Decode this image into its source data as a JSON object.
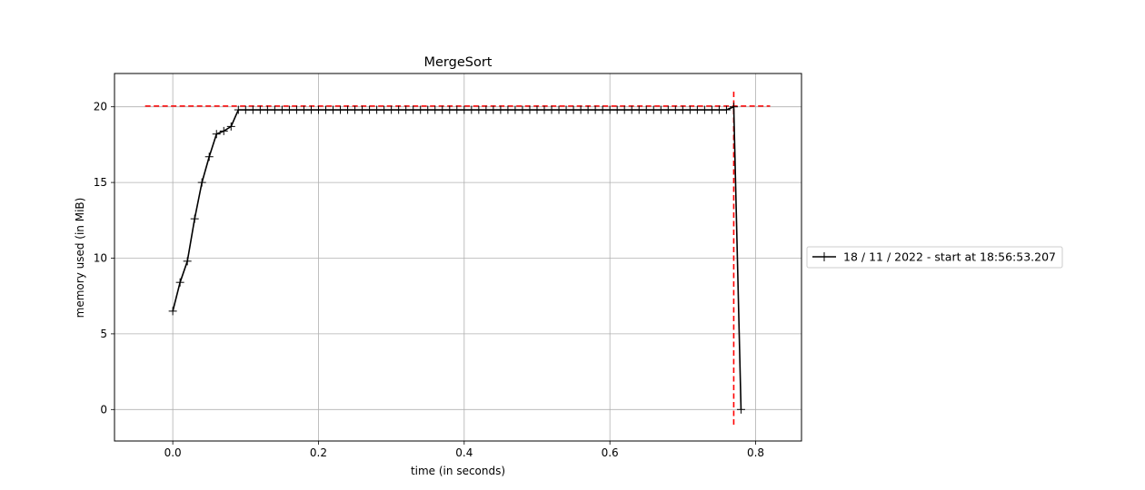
{
  "chart_data": {
    "type": "line",
    "title": "MergeSort",
    "xlabel": "time (in seconds)",
    "ylabel": "memory used (in MiB)",
    "xlim": [
      -0.08,
      0.863
    ],
    "ylim": [
      -2.08,
      22.2
    ],
    "xticks": [
      0.0,
      0.2,
      0.4,
      0.6,
      0.8
    ],
    "xtick_labels": [
      "0.0",
      "0.2",
      "0.4",
      "0.6",
      "0.8"
    ],
    "yticks": [
      0,
      5,
      10,
      15,
      20
    ],
    "ytick_labels": [
      "0",
      "5",
      "10",
      "15",
      "20"
    ],
    "grid": true,
    "legend_position": "outside-right",
    "series": [
      {
        "name": "18 / 11 / 2022 - start at 18:56:53.207",
        "color": "#000000",
        "marker": "+",
        "x": [
          0.0,
          0.01,
          0.02,
          0.03,
          0.04,
          0.05,
          0.06,
          0.07,
          0.08,
          0.09,
          0.1,
          0.11,
          0.12,
          0.13,
          0.14,
          0.15,
          0.16,
          0.17,
          0.18,
          0.19,
          0.2,
          0.21,
          0.22,
          0.23,
          0.24,
          0.25,
          0.26,
          0.27,
          0.28,
          0.29,
          0.3,
          0.31,
          0.32,
          0.33,
          0.34,
          0.35,
          0.36,
          0.37,
          0.38,
          0.39,
          0.4,
          0.41,
          0.42,
          0.43,
          0.44,
          0.45,
          0.46,
          0.47,
          0.48,
          0.49,
          0.5,
          0.51,
          0.52,
          0.53,
          0.54,
          0.55,
          0.56,
          0.57,
          0.58,
          0.59,
          0.6,
          0.61,
          0.62,
          0.63,
          0.64,
          0.65,
          0.66,
          0.67,
          0.68,
          0.69,
          0.7,
          0.71,
          0.72,
          0.73,
          0.74,
          0.75,
          0.76,
          0.77,
          0.78
        ],
        "y": [
          6.5,
          8.4,
          9.8,
          12.6,
          15.0,
          16.7,
          18.2,
          18.4,
          18.7,
          19.8,
          19.8,
          19.8,
          19.8,
          19.8,
          19.8,
          19.8,
          19.8,
          19.8,
          19.8,
          19.8,
          19.8,
          19.8,
          19.8,
          19.8,
          19.8,
          19.8,
          19.8,
          19.8,
          19.8,
          19.8,
          19.8,
          19.8,
          19.8,
          19.8,
          19.8,
          19.8,
          19.8,
          19.8,
          19.8,
          19.8,
          19.8,
          19.8,
          19.8,
          19.8,
          19.8,
          19.8,
          19.8,
          19.8,
          19.8,
          19.8,
          19.8,
          19.8,
          19.8,
          19.8,
          19.8,
          19.8,
          19.8,
          19.8,
          19.8,
          19.8,
          19.8,
          19.8,
          19.8,
          19.8,
          19.8,
          19.8,
          19.8,
          19.8,
          19.8,
          19.8,
          19.8,
          19.8,
          19.8,
          19.8,
          19.8,
          19.8,
          19.8,
          20.0,
          0.0
        ]
      }
    ],
    "reference_lines": [
      {
        "orientation": "horizontal",
        "value": 20.05,
        "from": -0.038,
        "to": 0.82,
        "color": "#ff0000",
        "style": "dashed"
      },
      {
        "orientation": "vertical",
        "value": 0.77,
        "from": -1.0,
        "to": 21.0,
        "color": "#ff0000",
        "style": "dashed"
      }
    ]
  }
}
